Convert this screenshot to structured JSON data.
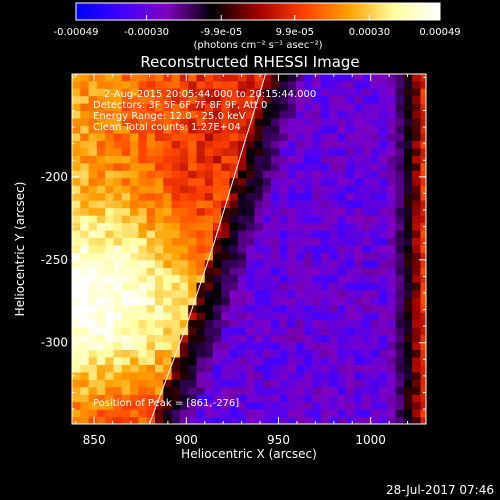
{
  "colorbar": {
    "tick_labels": [
      "-0.00049",
      "-0.00030",
      "-9.9e-05",
      "9.9e-05",
      "0.00030",
      "0.00049"
    ],
    "min": -0.00049,
    "max": 0.00049,
    "unit_label": "(photons cm⁻² s⁻¹ asec⁻²)",
    "colors": [
      "#0000ff",
      "#4000ff",
      "#8000c0",
      "#000000",
      "#a00000",
      "#ff4000",
      "#ffa000",
      "#ffffa0",
      "#ffffff"
    ]
  },
  "chart_data": {
    "type": "heatmap",
    "title": "Reconstructed RHESSI Image",
    "xlabel": "Heliocentric X (arcsec)",
    "ylabel": "Heliocentric Y (arcsec)",
    "xlim": [
      838,
      1030
    ],
    "ylim": [
      -349,
      -138
    ],
    "x_ticks": [
      850,
      900,
      950,
      1000
    ],
    "y_ticks": [
      -200,
      -250,
      -300
    ],
    "x_tick_labels": [
      "850",
      "900",
      "950",
      "1000"
    ],
    "y_tick_labels": [
      "-200",
      "-250",
      "-300"
    ],
    "annotations": [
      "2-Aug-2015 20:05:44.000 to 20:15:44.000",
      "Detectors: 3F 5F 6F 7F 8F 9F, Att 0",
      "Energy Range: 12.0 - 25.0 keV",
      "Clean   Total counts: 1.27E+04"
    ],
    "peak_label": "Position of Peak = [861,-276]",
    "peak": [
      861,
      -276
    ],
    "limb": [
      [
        880,
        -349
      ],
      [
        900,
        -290
      ],
      [
        915,
        -240
      ],
      [
        930,
        -185
      ],
      [
        943,
        -138
      ]
    ]
  },
  "footer": {
    "timestamp": "28-Jul-2017 07:46"
  }
}
